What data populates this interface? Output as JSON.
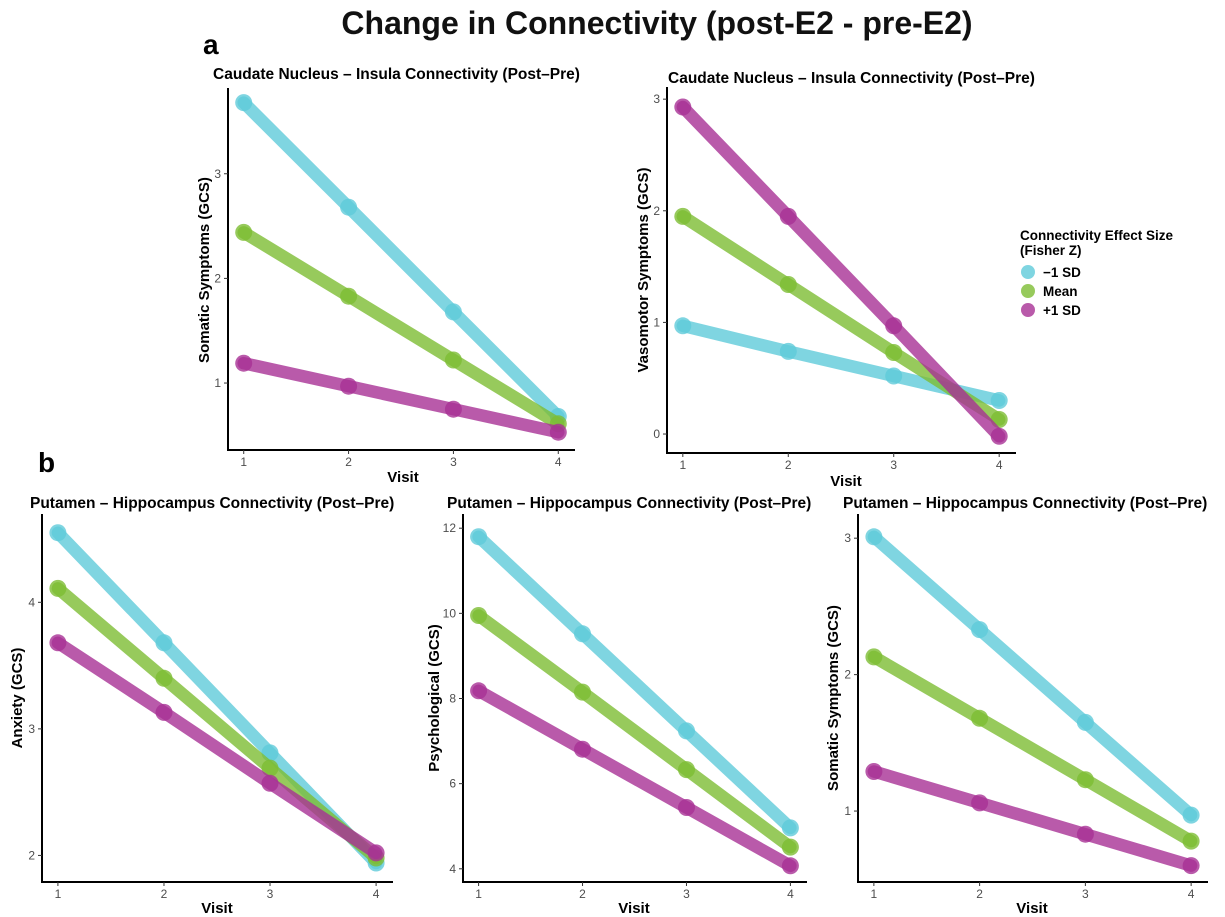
{
  "figure": {
    "title": "Change in Connectivity (post-E2 - pre-E2)",
    "panel_a_label": "a",
    "panel_b_label": "b"
  },
  "legend": {
    "position": "right",
    "title_line1": "Connectivity Effect Size",
    "title_line2": "(Fisher Z)",
    "items": [
      {
        "label": "−1 SD",
        "color": "#5fcad9"
      },
      {
        "label": "Mean",
        "color": "#7dbd33"
      },
      {
        "label": "+1 SD",
        "color": "#a73195"
      }
    ]
  },
  "chart_data": [
    {
      "type": "line",
      "title": "Caudate Nucleus – Insula Connectivity (Post–Pre)",
      "xlabel": "Visit",
      "ylabel": "Somatic Symptoms (GCS)",
      "grid": false,
      "x": [
        1,
        2,
        3,
        4
      ],
      "xticks": [
        1,
        2,
        3,
        4
      ],
      "yticks": [
        1,
        2,
        3
      ],
      "xlim": [
        0.85,
        4.15
      ],
      "ylim": [
        0.36,
        3.81
      ],
      "series": [
        {
          "name": "−1 SD",
          "values": [
            3.68,
            2.68,
            1.68,
            0.68
          ]
        },
        {
          "name": "Mean",
          "values": [
            2.44,
            1.83,
            1.22,
            0.61
          ]
        },
        {
          "name": "+1 SD",
          "values": [
            1.19,
            0.97,
            0.75,
            0.53
          ]
        }
      ]
    },
    {
      "type": "line",
      "title": "Caudate Nucleus – Insula Connectivity (Post–Pre)",
      "xlabel": "Visit",
      "ylabel": "Vasomotor Symptoms (GCS)",
      "grid": false,
      "x": [
        1,
        2,
        3,
        4
      ],
      "xticks": [
        1,
        2,
        3,
        4
      ],
      "yticks": [
        0,
        1,
        2,
        3
      ],
      "xlim": [
        0.85,
        4.15
      ],
      "ylim": [
        -0.17,
        3.1
      ],
      "series": [
        {
          "name": "−1 SD",
          "values": [
            0.97,
            0.74,
            0.52,
            0.3
          ]
        },
        {
          "name": "Mean",
          "values": [
            1.95,
            1.34,
            0.73,
            0.13
          ]
        },
        {
          "name": "+1 SD",
          "values": [
            2.93,
            1.95,
            0.97,
            -0.02
          ]
        }
      ]
    },
    {
      "type": "line",
      "title": "Putamen – Hippocampus Connectivity (Post–Pre)",
      "xlabel": "Visit",
      "ylabel": "Anxiety (GCS)",
      "grid": false,
      "x": [
        1,
        2,
        3,
        4
      ],
      "xticks": [
        1,
        2,
        3,
        4
      ],
      "yticks": [
        2,
        3,
        4
      ],
      "xlim": [
        0.85,
        4.15
      ],
      "ylim": [
        1.79,
        4.69
      ],
      "series": [
        {
          "name": "−1 SD",
          "values": [
            4.55,
            3.68,
            2.81,
            1.94
          ]
        },
        {
          "name": "Mean",
          "values": [
            4.11,
            3.4,
            2.69,
            1.98
          ]
        },
        {
          "name": "+1 SD",
          "values": [
            3.68,
            3.13,
            2.57,
            2.02
          ]
        }
      ]
    },
    {
      "type": "line",
      "title": "Putamen – Hippocampus Connectivity (Post–Pre)",
      "xlabel": "Visit",
      "ylabel": "Psychological (GCS)",
      "grid": false,
      "x": [
        1,
        2,
        3,
        4
      ],
      "xticks": [
        1,
        2,
        3,
        4
      ],
      "yticks": [
        4,
        6,
        8,
        10,
        12
      ],
      "xlim": [
        0.85,
        4.15
      ],
      "ylim": [
        3.69,
        12.31
      ],
      "series": [
        {
          "name": "−1 SD",
          "values": [
            11.8,
            9.52,
            7.24,
            4.96
          ]
        },
        {
          "name": "Mean",
          "values": [
            9.95,
            8.15,
            6.33,
            4.51
          ]
        },
        {
          "name": "+1 SD",
          "values": [
            8.18,
            6.81,
            5.44,
            4.07
          ]
        }
      ]
    },
    {
      "type": "line",
      "title": "Putamen – Hippocampus Connectivity (Post–Pre)",
      "xlabel": "Visit",
      "ylabel": "Somatic Symptoms (GCS)",
      "grid": false,
      "x": [
        1,
        2,
        3,
        4
      ],
      "xticks": [
        1,
        2,
        3,
        4
      ],
      "yticks": [
        1,
        2,
        3
      ],
      "xlim": [
        0.85,
        4.15
      ],
      "ylim": [
        0.48,
        3.17
      ],
      "series": [
        {
          "name": "−1 SD",
          "values": [
            3.01,
            2.33,
            1.65,
            0.97
          ]
        },
        {
          "name": "Mean",
          "values": [
            2.13,
            1.68,
            1.23,
            0.78
          ]
        },
        {
          "name": "+1 SD",
          "values": [
            1.29,
            1.06,
            0.83,
            0.6
          ]
        }
      ]
    }
  ]
}
